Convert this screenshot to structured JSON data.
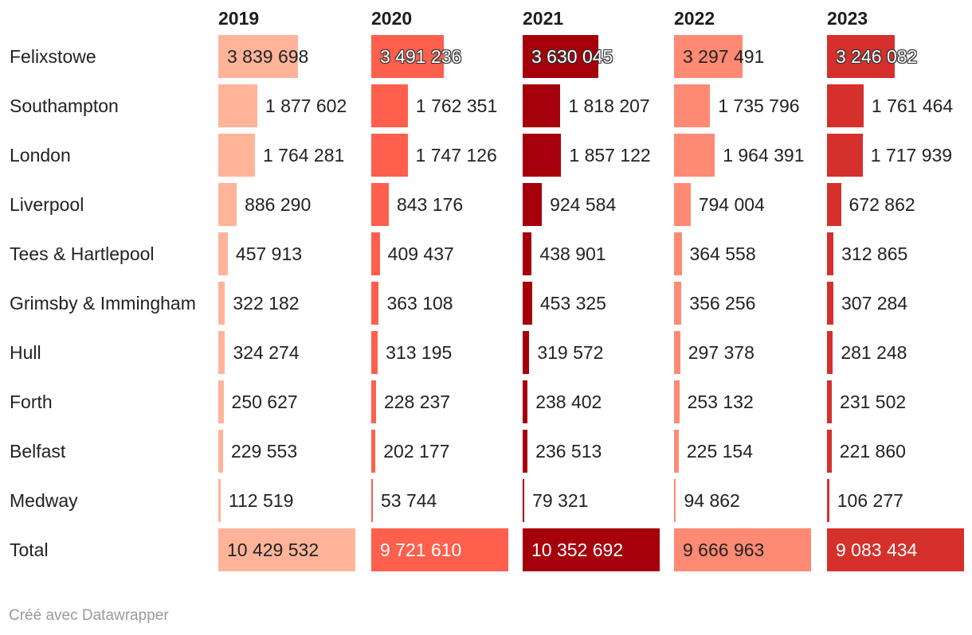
{
  "chart_data": {
    "type": "table",
    "columns": [
      "2019",
      "2020",
      "2021",
      "2022",
      "2023"
    ],
    "colors": [
      "#ffb49a",
      "#ff5f4d",
      "#a6000b",
      "#ff8a73",
      "#d5302c"
    ],
    "rows": [
      {
        "label": "Felixstowe",
        "values": [
          3839698,
          3491236,
          3630045,
          3297491,
          3246082
        ],
        "display": [
          "3 839 698",
          "3 491 236",
          "3 630 045",
          "3 297 491",
          "3 246 082"
        ]
      },
      {
        "label": "Southampton",
        "values": [
          1877602,
          1762351,
          1818207,
          1735796,
          1761464
        ],
        "display": [
          "1 877 602",
          "1 762 351",
          "1 818 207",
          "1 735 796",
          "1 761 464"
        ]
      },
      {
        "label": "London",
        "values": [
          1764281,
          1747126,
          1857122,
          1964391,
          1717939
        ],
        "display": [
          "1 764 281",
          "1 747 126",
          "1 857 122",
          "1 964 391",
          "1 717 939"
        ]
      },
      {
        "label": "Liverpool",
        "values": [
          886290,
          843176,
          924584,
          794004,
          672862
        ],
        "display": [
          "886 290",
          "843 176",
          "924 584",
          "794 004",
          "672 862"
        ]
      },
      {
        "label": "Tees & Hartlepool",
        "values": [
          457913,
          409437,
          438901,
          364558,
          312865
        ],
        "display": [
          "457 913",
          "409 437",
          "438 901",
          "364 558",
          "312 865"
        ]
      },
      {
        "label": "Grimsby & Immingham",
        "values": [
          322182,
          363108,
          453325,
          356256,
          307284
        ],
        "display": [
          "322 182",
          "363 108",
          "453 325",
          "356 256",
          "307 284"
        ]
      },
      {
        "label": "Hull",
        "values": [
          324274,
          313195,
          319572,
          297378,
          281248
        ],
        "display": [
          "324 274",
          "313 195",
          "319 572",
          "297 378",
          "281 248"
        ]
      },
      {
        "label": "Forth",
        "values": [
          250627,
          228237,
          238402,
          253132,
          231502
        ],
        "display": [
          "250 627",
          "228 237",
          "238 402",
          "253 132",
          "231 502"
        ]
      },
      {
        "label": "Belfast",
        "values": [
          229553,
          202177,
          236513,
          225154,
          221860
        ],
        "display": [
          "229 553",
          "202 177",
          "236 513",
          "225 154",
          "221 860"
        ]
      },
      {
        "label": "Medway",
        "values": [
          112519,
          53744,
          79321,
          94862,
          106277
        ],
        "display": [
          "112 519",
          "53 744",
          "79 321",
          "94 862",
          "106 277"
        ]
      }
    ],
    "total": {
      "label": "Total",
      "values": [
        10429532,
        9721610,
        10352692,
        9666963,
        9083434
      ],
      "display": [
        "10 429 532",
        "9 721 610",
        "10 352 692",
        "9 666 963",
        "9 083 434"
      ]
    },
    "scale_max": 6600000
  },
  "footer": "Créé avec Datawrapper"
}
